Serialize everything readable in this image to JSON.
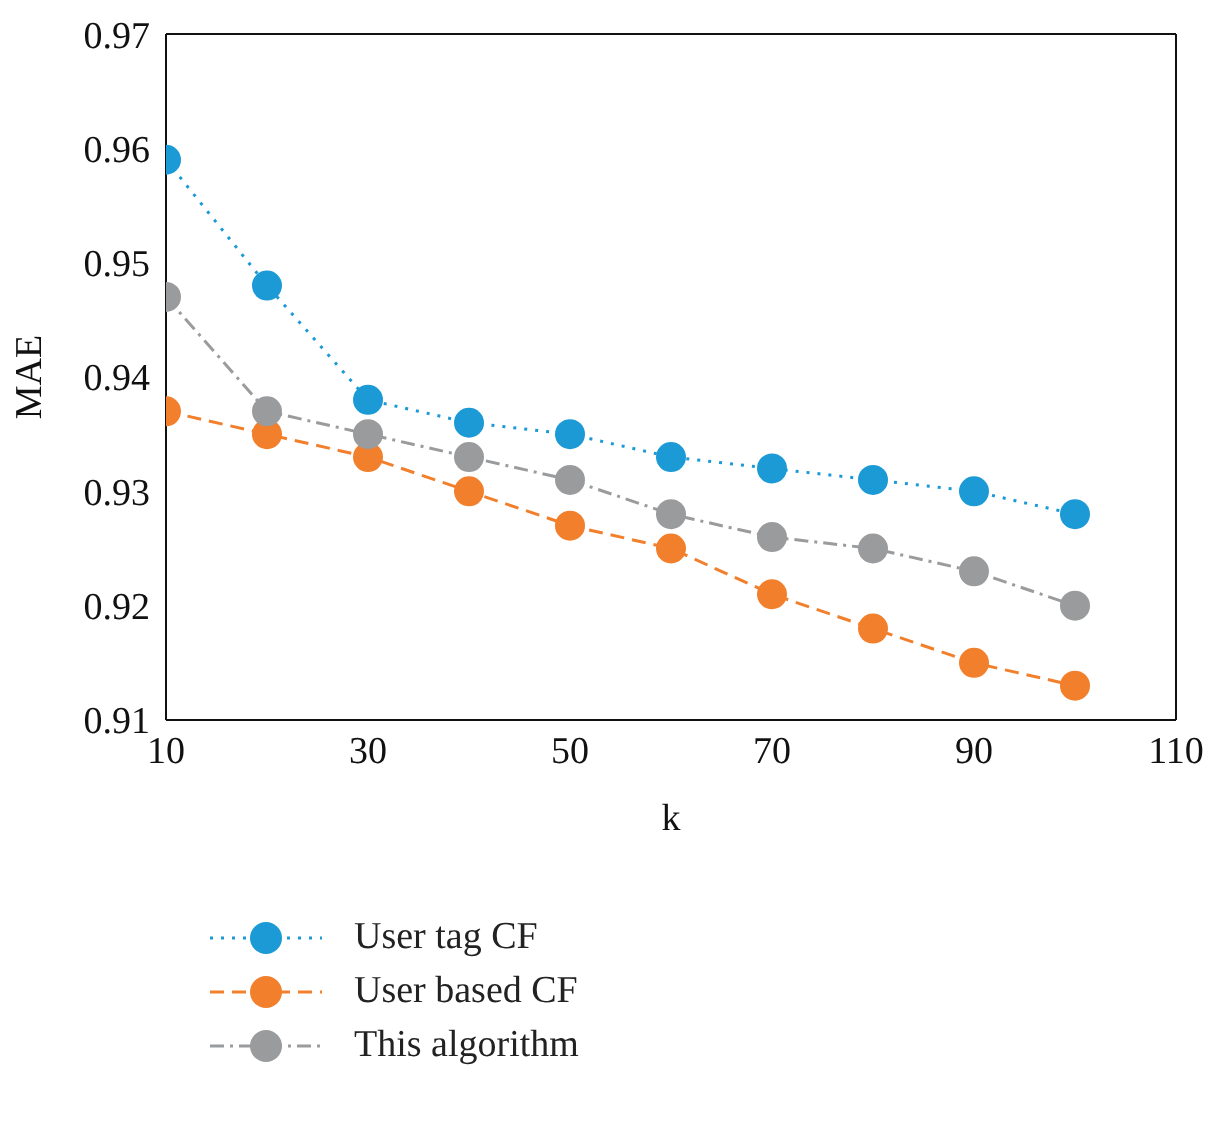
{
  "chart_data": {
    "type": "line",
    "xlabel": "k",
    "ylabel": "MAE",
    "x": [
      10,
      20,
      30,
      40,
      50,
      60,
      70,
      80,
      90,
      100
    ],
    "series": [
      {
        "name": "User tag CF",
        "color": "#1b9ad6",
        "line_style": "dotted",
        "values": [
          0.959,
          0.948,
          0.938,
          0.936,
          0.935,
          0.933,
          0.932,
          0.931,
          0.93,
          0.928
        ]
      },
      {
        "name": "User based CF",
        "color": "#f27f2b",
        "line_style": "dashed",
        "values": [
          0.937,
          0.935,
          0.933,
          0.93,
          0.927,
          0.925,
          0.921,
          0.918,
          0.915,
          0.913
        ]
      },
      {
        "name": "This algorithm",
        "color": "#9a9b9d",
        "line_style": "dashdot",
        "values": [
          0.947,
          0.937,
          0.935,
          0.933,
          0.931,
          0.928,
          0.926,
          0.925,
          0.923,
          0.92
        ]
      }
    ],
    "xlim": [
      10,
      110
    ],
    "xticks": [
      10,
      30,
      50,
      70,
      90,
      110
    ],
    "ylim": [
      0.91,
      0.97
    ],
    "yticks": [
      0.91,
      0.92,
      0.93,
      0.94,
      0.95,
      0.96,
      0.97
    ],
    "grid": false,
    "legend": "bottom left",
    "marker": "circle"
  }
}
